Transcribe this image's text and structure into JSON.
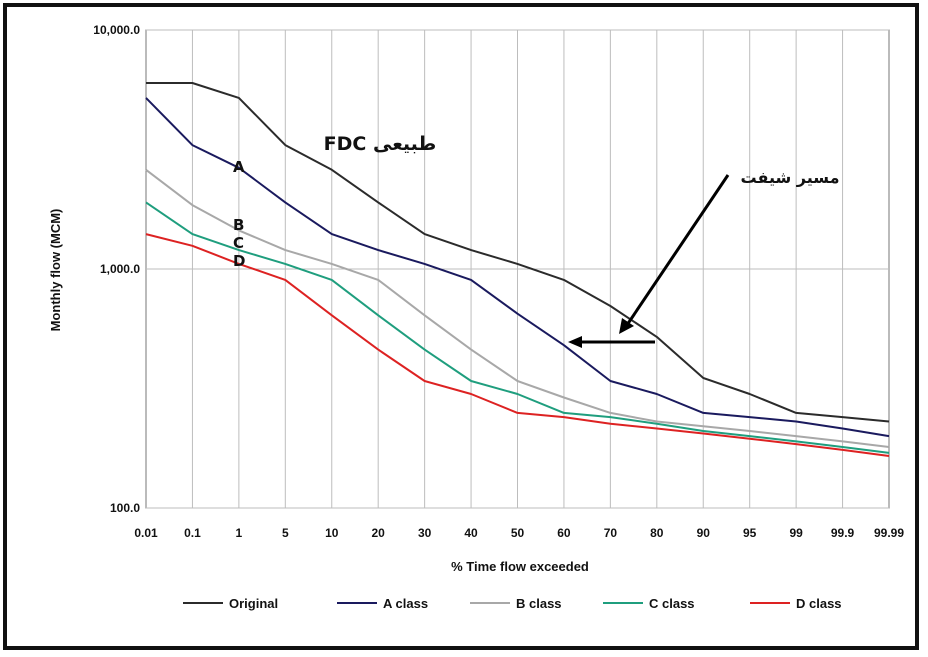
{
  "chart_data": {
    "type": "line",
    "xlabel": "% Time flow exceeded",
    "ylabel": "Monthly flow (MCM)",
    "y_scale": "log",
    "ylim": [
      100,
      10000
    ],
    "y_ticks": [
      "100.0",
      "1,000.0",
      "10,000.0"
    ],
    "categories": [
      "0.01",
      "0.1",
      "1",
      "5",
      "10",
      "20",
      "30",
      "40",
      "50",
      "60",
      "70",
      "80",
      "90",
      "95",
      "99",
      "99.9",
      "99.99"
    ],
    "grid": true,
    "legend_position": "bottom",
    "series": [
      {
        "name": "Original",
        "color": "#2b2b2b",
        "values": [
          6000,
          6000,
          5200,
          3300,
          2600,
          1900,
          1400,
          1200,
          1050,
          900,
          700,
          520,
          350,
          300,
          250,
          240,
          230
        ]
      },
      {
        "name": "A class",
        "color": "#1a1a5e",
        "values": [
          5200,
          3300,
          2650,
          1900,
          1400,
          1200,
          1050,
          900,
          650,
          480,
          340,
          300,
          250,
          240,
          230,
          215,
          200
        ]
      },
      {
        "name": "B class",
        "color": "#a8a8a8",
        "values": [
          2600,
          1850,
          1450,
          1200,
          1050,
          900,
          640,
          460,
          340,
          290,
          250,
          230,
          220,
          210,
          200,
          190,
          180
        ]
      },
      {
        "name": "C class",
        "color": "#1f9e7e",
        "values": [
          1900,
          1400,
          1200,
          1050,
          900,
          640,
          460,
          340,
          300,
          250,
          240,
          225,
          210,
          200,
          190,
          180,
          170
        ]
      },
      {
        "name": "D class",
        "color": "#dd2222",
        "values": [
          1400,
          1250,
          1050,
          900,
          640,
          460,
          340,
          300,
          250,
          240,
          225,
          215,
          205,
          195,
          185,
          175,
          165
        ]
      }
    ],
    "annotations": [
      {
        "text": "FDC طبیعی"
      },
      {
        "text": "A"
      },
      {
        "text": "B"
      },
      {
        "text": "C"
      },
      {
        "text": "D"
      },
      {
        "text": "مسیر شیفت"
      }
    ]
  }
}
